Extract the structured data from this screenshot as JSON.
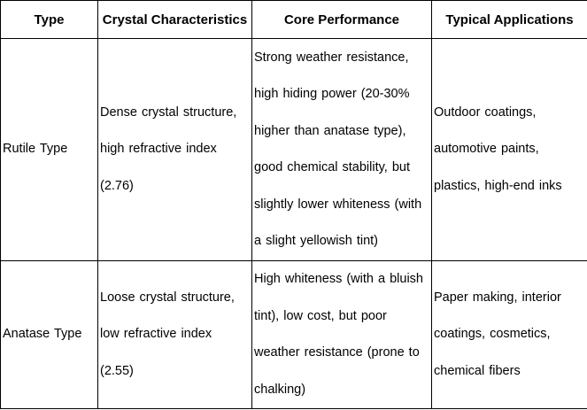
{
  "colors": {
    "border": "#000000",
    "text": "#000000",
    "background": "#ffffff"
  },
  "table": {
    "headers": [
      "Type",
      "Crystal Characteristics",
      "Core Performance",
      "Typical Applications"
    ],
    "rows": [
      {
        "type": "Rutile Type",
        "crystal": [
          "Dense crystal structure,",
          "high refractive index",
          "(2.76)"
        ],
        "performance": [
          "Strong weather resistance,",
          "high hiding power (20-30%",
          "higher than anatase type),",
          "good chemical stability, but",
          "slightly lower whiteness (with",
          "a slight yellowish tint)"
        ],
        "applications": [
          "Outdoor coatings,",
          "automotive paints,",
          "plastics, high-end inks"
        ]
      },
      {
        "type": "Anatase Type",
        "crystal": [
          "Loose crystal structure,",
          "low refractive index",
          "(2.55)"
        ],
        "performance": [
          "High whiteness (with a bluish",
          "tint), low cost, but poor",
          "weather resistance (prone to",
          "chalking)"
        ],
        "applications": [
          "Paper making, interior",
          "coatings, cosmetics,",
          "chemical fibers"
        ]
      }
    ]
  }
}
